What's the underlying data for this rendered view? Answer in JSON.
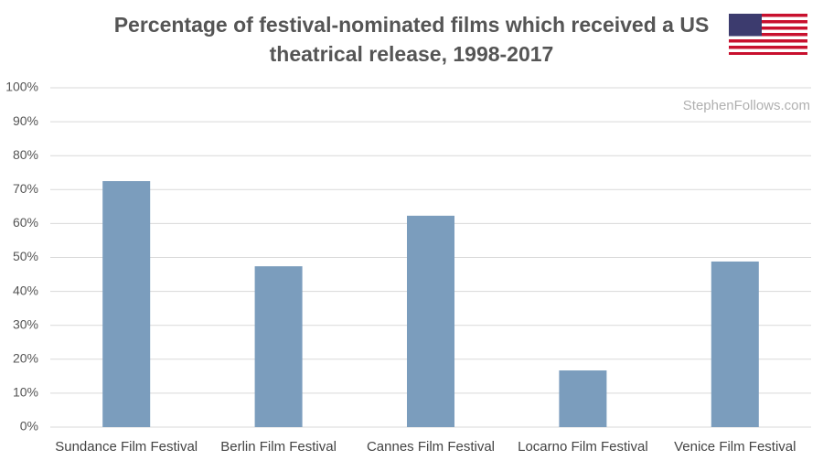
{
  "chart_data": {
    "type": "bar",
    "title": [
      "Percentage of festival-nominated films which received a US",
      "theatrical release, 1998-2017"
    ],
    "watermark": "StephenFollows.com",
    "categories": [
      "Sundance Film Festival",
      "Berlin Film Festival",
      "Cannes Film Festival",
      "Locarno Film Festival",
      "Venice Film Festival"
    ],
    "values": [
      72.5,
      47.4,
      62.3,
      16.7,
      48.8
    ],
    "color": "#7b9dbd",
    "ylim": [
      0,
      100
    ],
    "yticks": [
      {
        "value": 0,
        "label": "0%"
      },
      {
        "value": 10,
        "label": "10%"
      },
      {
        "value": 20,
        "label": "20%"
      },
      {
        "value": 30,
        "label": "30%"
      },
      {
        "value": 40,
        "label": "40%"
      },
      {
        "value": 50,
        "label": "50%"
      },
      {
        "value": 60,
        "label": "60%"
      },
      {
        "value": 70,
        "label": "70%"
      },
      {
        "value": 80,
        "label": "80%"
      },
      {
        "value": 90,
        "label": "90%"
      },
      {
        "value": 100,
        "label": "100%"
      }
    ],
    "grid": true
  }
}
